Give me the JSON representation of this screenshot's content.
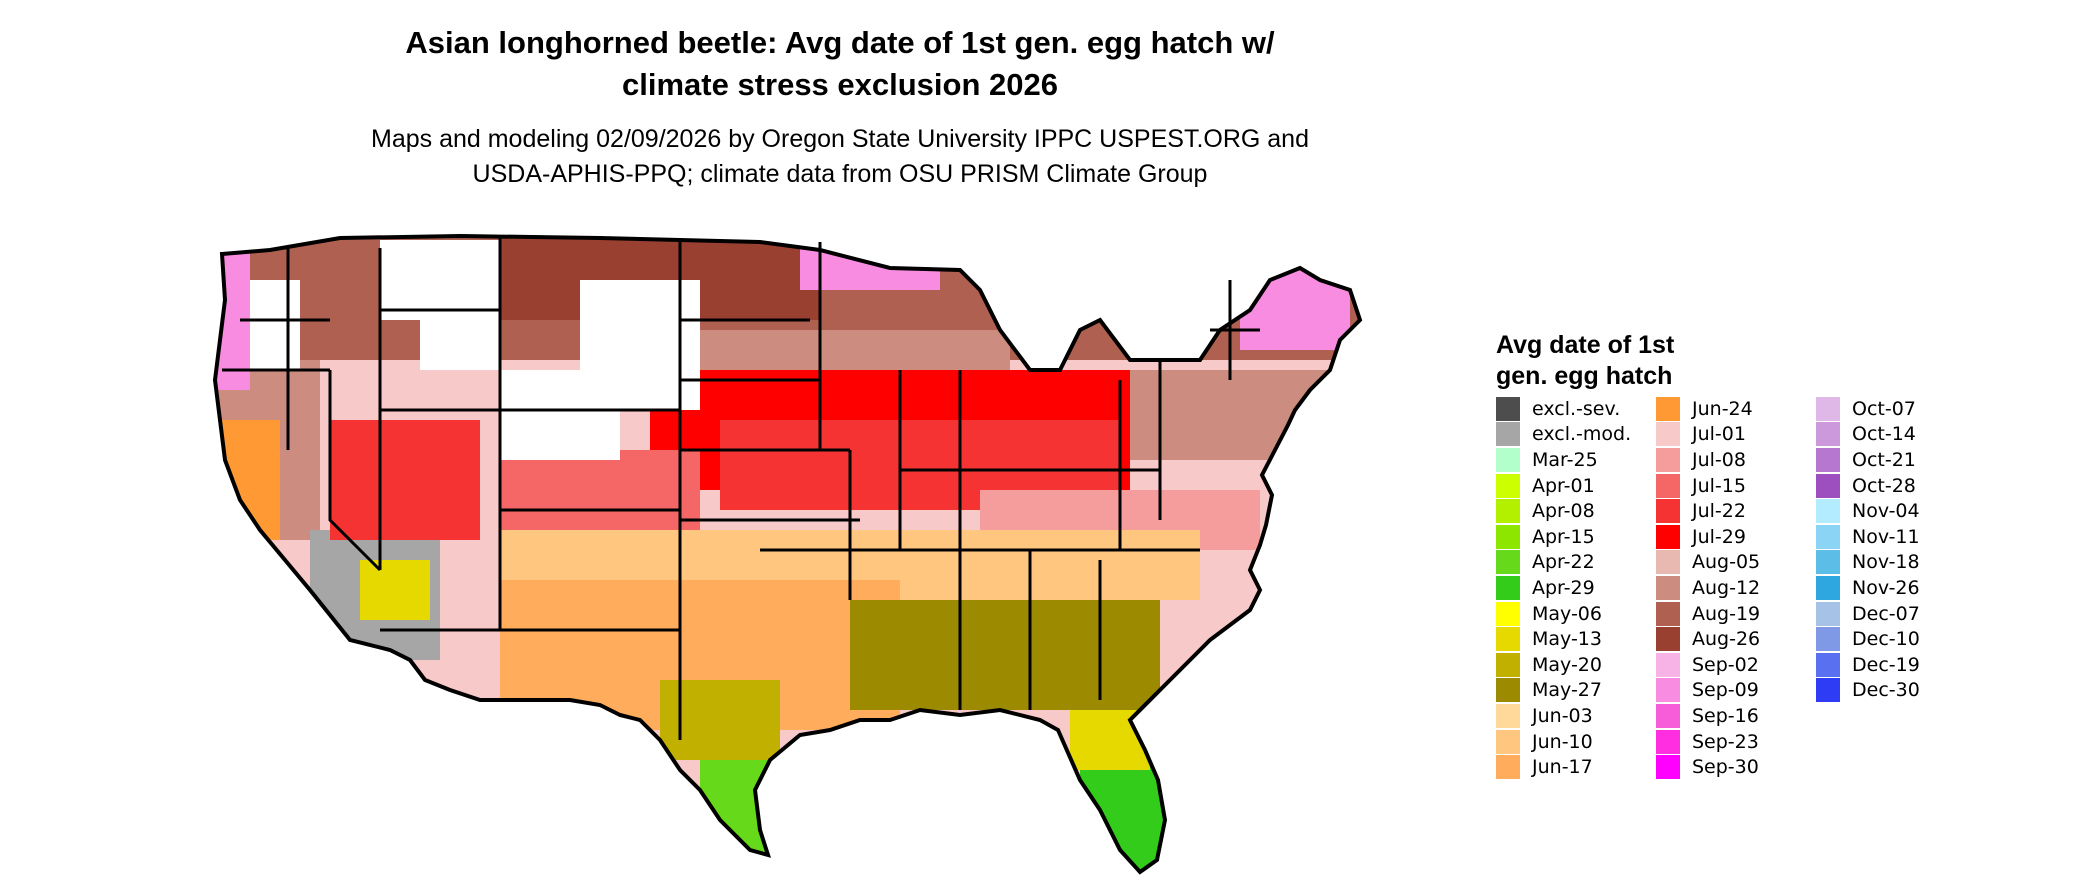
{
  "title_line1": "Asian longhorned beetle: Avg date of 1st gen. egg hatch w/",
  "title_line2": "climate stress exclusion 2026",
  "subtitle_line1": "Maps and modeling 02/09/2026 by Oregon State University IPPC USPEST.ORG and",
  "subtitle_line2": "USDA-APHIS-PPQ; climate data from OSU PRISM Climate Group",
  "legend": {
    "title_line1": "Avg date of 1st",
    "title_line2": "gen. egg hatch",
    "columns": [
      [
        {
          "label": "excl.-sev.",
          "color": "#4d4d4d"
        },
        {
          "label": "excl.-mod.",
          "color": "#a6a6a6"
        },
        {
          "label": "Mar-25",
          "color": "#b3ffcc"
        },
        {
          "label": "Apr-01",
          "color": "#ccff00"
        },
        {
          "label": "Apr-08",
          "color": "#b3f000"
        },
        {
          "label": "Apr-15",
          "color": "#8ce600"
        },
        {
          "label": "Apr-22",
          "color": "#66d91a"
        },
        {
          "label": "Apr-29",
          "color": "#33cc1a"
        },
        {
          "label": "May-06",
          "color": "#ffff00"
        },
        {
          "label": "May-13",
          "color": "#e6d900"
        },
        {
          "label": "May-20",
          "color": "#c2b000"
        },
        {
          "label": "May-27",
          "color": "#9c8a00"
        },
        {
          "label": "Jun-03",
          "color": "#ffd99a"
        },
        {
          "label": "Jun-10",
          "color": "#ffc680"
        },
        {
          "label": "Jun-17",
          "color": "#ffad5c"
        }
      ],
      [
        {
          "label": "Jun-24",
          "color": "#ff9933"
        },
        {
          "label": "Jul-01",
          "color": "#f7c9c9"
        },
        {
          "label": "Jul-08",
          "color": "#f59c9c"
        },
        {
          "label": "Jul-15",
          "color": "#f56666"
        },
        {
          "label": "Jul-22",
          "color": "#f53333"
        },
        {
          "label": "Jul-29",
          "color": "#ff0000"
        },
        {
          "label": "Aug-05",
          "color": "#e8b9b0"
        },
        {
          "label": "Aug-12",
          "color": "#cc8c80"
        },
        {
          "label": "Aug-19",
          "color": "#b06050"
        },
        {
          "label": "Aug-26",
          "color": "#994030"
        },
        {
          "label": "Sep-02",
          "color": "#f7b3e6"
        },
        {
          "label": "Sep-09",
          "color": "#f78ce0"
        },
        {
          "label": "Sep-16",
          "color": "#f75cd9"
        },
        {
          "label": "Sep-23",
          "color": "#ff2ee0"
        },
        {
          "label": "Sep-30",
          "color": "#ff00ff"
        }
      ],
      [
        {
          "label": "Oct-07",
          "color": "#e0b8e8"
        },
        {
          "label": "Oct-14",
          "color": "#cc99dd"
        },
        {
          "label": "Oct-21",
          "color": "#b577d0"
        },
        {
          "label": "Oct-28",
          "color": "#9e4fbf"
        },
        {
          "label": "Nov-04",
          "color": "#b3ecff"
        },
        {
          "label": "Nov-11",
          "color": "#8cd4f5"
        },
        {
          "label": "Nov-18",
          "color": "#5cbde6"
        },
        {
          "label": "Nov-26",
          "color": "#2ea6e0"
        },
        {
          "label": "Dec-07",
          "color": "#a6c2e6"
        },
        {
          "label": "Dec-10",
          "color": "#7f99e6"
        },
        {
          "label": "Dec-19",
          "color": "#5970f0"
        },
        {
          "label": "Dec-30",
          "color": "#2e3df5"
        }
      ]
    ]
  }
}
